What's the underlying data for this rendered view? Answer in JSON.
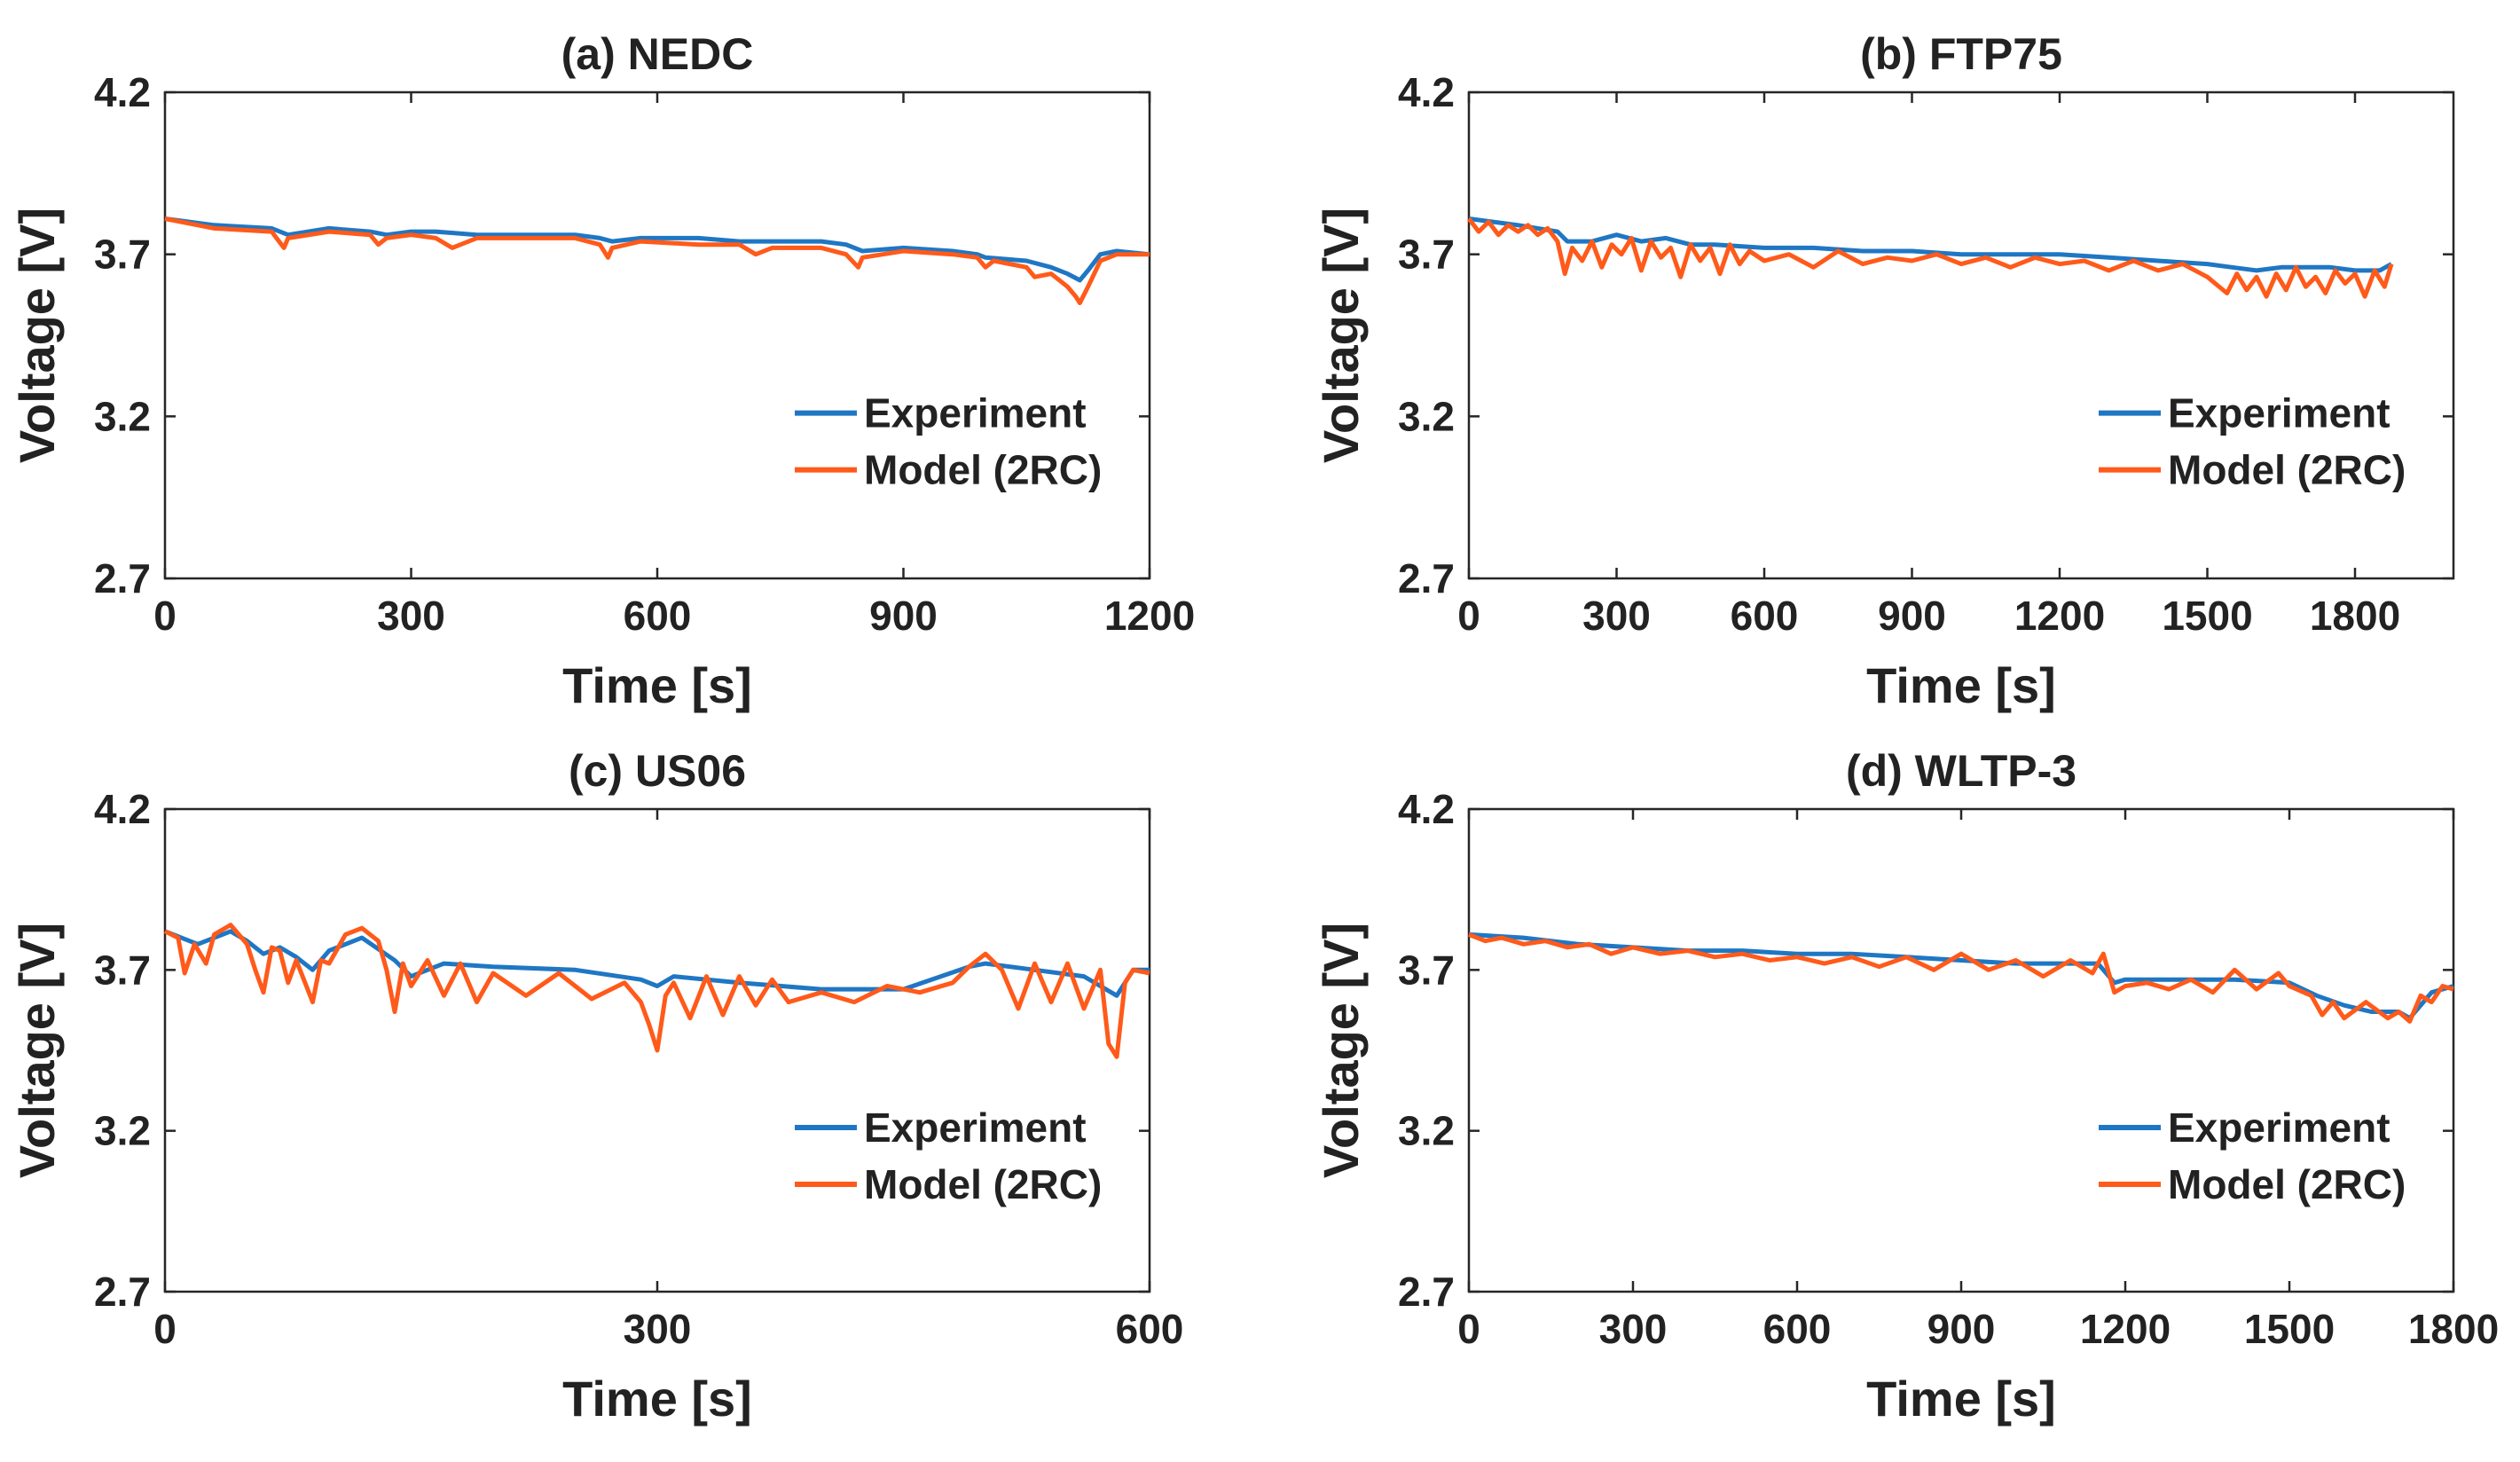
{
  "colors": {
    "experiment": "#1f77c4",
    "model": "#ff5a1a"
  },
  "chart_data": [
    {
      "type": "line",
      "title": "(a) NEDC",
      "xlabel": "Time [s]",
      "ylabel": "Voltage [V]",
      "xlim": [
        0,
        1200
      ],
      "ylim": [
        2.7,
        4.2
      ],
      "xticks": [
        "0",
        "300",
        "600",
        "900",
        "1200"
      ],
      "yticks": [
        "2.7",
        "3.2",
        "3.7",
        "4.2"
      ],
      "legend_position": "center-right",
      "series": [
        {
          "name": "Experiment",
          "x": [
            0,
            60,
            130,
            150,
            200,
            250,
            270,
            300,
            330,
            380,
            450,
            500,
            530,
            545,
            580,
            650,
            700,
            740,
            800,
            830,
            850,
            900,
            960,
            990,
            1000,
            1050,
            1080,
            1100,
            1115,
            1125,
            1140,
            1160,
            1200
          ],
          "y": [
            3.81,
            3.79,
            3.78,
            3.76,
            3.78,
            3.77,
            3.76,
            3.77,
            3.77,
            3.76,
            3.76,
            3.76,
            3.75,
            3.74,
            3.75,
            3.75,
            3.74,
            3.74,
            3.74,
            3.73,
            3.71,
            3.72,
            3.71,
            3.7,
            3.69,
            3.68,
            3.66,
            3.64,
            3.62,
            3.65,
            3.7,
            3.71,
            3.7
          ]
        },
        {
          "name": "Model (2RC)",
          "x": [
            0,
            60,
            130,
            145,
            150,
            200,
            250,
            260,
            270,
            300,
            330,
            350,
            380,
            450,
            500,
            530,
            540,
            545,
            580,
            650,
            700,
            720,
            740,
            800,
            830,
            845,
            850,
            900,
            960,
            990,
            1000,
            1010,
            1050,
            1060,
            1080,
            1100,
            1110,
            1115,
            1125,
            1140,
            1160,
            1200
          ],
          "y": [
            3.81,
            3.78,
            3.77,
            3.72,
            3.75,
            3.77,
            3.76,
            3.73,
            3.75,
            3.76,
            3.75,
            3.72,
            3.75,
            3.75,
            3.75,
            3.73,
            3.69,
            3.72,
            3.74,
            3.73,
            3.73,
            3.7,
            3.72,
            3.72,
            3.7,
            3.66,
            3.69,
            3.71,
            3.7,
            3.69,
            3.66,
            3.68,
            3.66,
            3.63,
            3.64,
            3.6,
            3.57,
            3.55,
            3.6,
            3.68,
            3.7,
            3.7
          ]
        }
      ]
    },
    {
      "type": "line",
      "title": "(b) FTP75",
      "xlabel": "Time [s]",
      "ylabel": "Voltage [V]",
      "xlim": [
        0,
        2000
      ],
      "ylim": [
        2.7,
        4.2
      ],
      "xticks": [
        "0",
        "300",
        "600",
        "900",
        "1200",
        "1500",
        "1800"
      ],
      "yticks": [
        "2.7",
        "3.2",
        "3.7",
        "4.2"
      ],
      "legend_position": "center-right",
      "series": [
        {
          "name": "Experiment",
          "x": [
            0,
            100,
            180,
            200,
            250,
            300,
            350,
            400,
            450,
            500,
            600,
            700,
            800,
            900,
            1000,
            1100,
            1200,
            1300,
            1400,
            1500,
            1550,
            1600,
            1650,
            1700,
            1750,
            1800,
            1850,
            1874
          ],
          "y": [
            3.81,
            3.79,
            3.77,
            3.74,
            3.74,
            3.76,
            3.74,
            3.75,
            3.73,
            3.73,
            3.72,
            3.72,
            3.71,
            3.71,
            3.7,
            3.7,
            3.7,
            3.69,
            3.68,
            3.67,
            3.66,
            3.65,
            3.66,
            3.66,
            3.66,
            3.65,
            3.65,
            3.67
          ]
        },
        {
          "name": "Model (2RC)",
          "x": [
            0,
            20,
            40,
            60,
            80,
            100,
            120,
            140,
            160,
            180,
            195,
            210,
            230,
            250,
            270,
            290,
            310,
            330,
            350,
            370,
            390,
            410,
            430,
            450,
            470,
            490,
            510,
            530,
            550,
            570,
            600,
            650,
            700,
            750,
            800,
            850,
            900,
            950,
            1000,
            1050,
            1100,
            1150,
            1200,
            1250,
            1300,
            1350,
            1400,
            1450,
            1500,
            1540,
            1560,
            1580,
            1600,
            1620,
            1640,
            1660,
            1680,
            1700,
            1720,
            1740,
            1760,
            1780,
            1800,
            1820,
            1840,
            1860,
            1874
          ],
          "y": [
            3.81,
            3.77,
            3.8,
            3.76,
            3.79,
            3.77,
            3.79,
            3.76,
            3.78,
            3.74,
            3.64,
            3.72,
            3.68,
            3.74,
            3.66,
            3.73,
            3.7,
            3.75,
            3.65,
            3.74,
            3.69,
            3.72,
            3.63,
            3.73,
            3.68,
            3.72,
            3.64,
            3.73,
            3.67,
            3.71,
            3.68,
            3.7,
            3.66,
            3.71,
            3.67,
            3.69,
            3.68,
            3.7,
            3.67,
            3.69,
            3.66,
            3.69,
            3.67,
            3.68,
            3.65,
            3.68,
            3.65,
            3.67,
            3.63,
            3.58,
            3.64,
            3.59,
            3.63,
            3.57,
            3.64,
            3.59,
            3.66,
            3.6,
            3.63,
            3.58,
            3.65,
            3.61,
            3.64,
            3.57,
            3.65,
            3.6,
            3.67
          ]
        }
      ]
    },
    {
      "type": "line",
      "title": "(c) US06",
      "xlabel": "Time [s]",
      "ylabel": "Voltage [V]",
      "xlim": [
        0,
        600
      ],
      "ylim": [
        2.7,
        4.2
      ],
      "xticks": [
        "0",
        "300",
        "600"
      ],
      "yticks": [
        "2.7",
        "3.2",
        "3.7",
        "4.2"
      ],
      "legend_position": "center-right",
      "series": [
        {
          "name": "Experiment",
          "x": [
            0,
            10,
            20,
            30,
            40,
            50,
            60,
            70,
            80,
            90,
            100,
            120,
            140,
            150,
            170,
            200,
            250,
            290,
            300,
            310,
            350,
            400,
            450,
            490,
            500,
            530,
            560,
            580,
            590,
            600
          ],
          "y": [
            3.82,
            3.8,
            3.78,
            3.8,
            3.82,
            3.79,
            3.75,
            3.77,
            3.74,
            3.7,
            3.76,
            3.8,
            3.73,
            3.68,
            3.72,
            3.71,
            3.7,
            3.67,
            3.65,
            3.68,
            3.66,
            3.64,
            3.64,
            3.71,
            3.72,
            3.7,
            3.68,
            3.62,
            3.7,
            3.7
          ]
        },
        {
          "name": "Model (2RC)",
          "x": [
            0,
            8,
            12,
            18,
            25,
            30,
            40,
            50,
            55,
            60,
            65,
            70,
            75,
            80,
            90,
            95,
            100,
            110,
            120,
            130,
            135,
            140,
            145,
            150,
            160,
            170,
            180,
            190,
            200,
            220,
            240,
            260,
            280,
            290,
            295,
            300,
            305,
            310,
            320,
            330,
            340,
            350,
            360,
            370,
            380,
            400,
            420,
            440,
            460,
            480,
            490,
            500,
            510,
            520,
            530,
            540,
            550,
            560,
            570,
            575,
            580,
            585,
            590,
            600
          ],
          "y": [
            3.82,
            3.8,
            3.69,
            3.78,
            3.72,
            3.81,
            3.84,
            3.78,
            3.7,
            3.63,
            3.77,
            3.76,
            3.66,
            3.73,
            3.6,
            3.73,
            3.72,
            3.81,
            3.83,
            3.79,
            3.7,
            3.57,
            3.72,
            3.65,
            3.73,
            3.62,
            3.72,
            3.6,
            3.69,
            3.62,
            3.69,
            3.61,
            3.66,
            3.6,
            3.53,
            3.45,
            3.62,
            3.66,
            3.55,
            3.68,
            3.56,
            3.68,
            3.59,
            3.67,
            3.6,
            3.63,
            3.6,
            3.65,
            3.63,
            3.66,
            3.71,
            3.75,
            3.7,
            3.58,
            3.72,
            3.6,
            3.72,
            3.58,
            3.7,
            3.47,
            3.43,
            3.66,
            3.7,
            3.69
          ]
        }
      ]
    },
    {
      "type": "line",
      "title": "(d) WLTP-3",
      "xlabel": "Time [s]",
      "ylabel": "Voltage [V]",
      "xlim": [
        0,
        1800
      ],
      "ylim": [
        2.7,
        4.2
      ],
      "xticks": [
        "0",
        "300",
        "600",
        "900",
        "1200",
        "1500",
        "1800"
      ],
      "yticks": [
        "2.7",
        "3.2",
        "3.7",
        "4.2"
      ],
      "legend_position": "center-right",
      "series": [
        {
          "name": "Experiment",
          "x": [
            0,
            100,
            200,
            300,
            400,
            500,
            600,
            700,
            800,
            900,
            1000,
            1100,
            1150,
            1180,
            1200,
            1300,
            1400,
            1500,
            1550,
            1600,
            1650,
            1700,
            1720,
            1760,
            1800
          ],
          "y": [
            3.81,
            3.8,
            3.78,
            3.77,
            3.76,
            3.76,
            3.75,
            3.75,
            3.74,
            3.73,
            3.72,
            3.72,
            3.72,
            3.66,
            3.67,
            3.67,
            3.67,
            3.66,
            3.62,
            3.59,
            3.57,
            3.57,
            3.55,
            3.63,
            3.65
          ]
        },
        {
          "name": "Model (2RC)",
          "x": [
            0,
            30,
            60,
            100,
            140,
            180,
            220,
            260,
            300,
            350,
            400,
            450,
            500,
            550,
            600,
            650,
            700,
            750,
            800,
            850,
            900,
            950,
            1000,
            1050,
            1100,
            1140,
            1160,
            1180,
            1200,
            1240,
            1280,
            1320,
            1360,
            1400,
            1440,
            1480,
            1500,
            1540,
            1560,
            1580,
            1600,
            1640,
            1680,
            1700,
            1720,
            1740,
            1760,
            1780,
            1800
          ],
          "y": [
            3.81,
            3.79,
            3.8,
            3.78,
            3.79,
            3.77,
            3.78,
            3.75,
            3.77,
            3.75,
            3.76,
            3.74,
            3.75,
            3.73,
            3.74,
            3.72,
            3.74,
            3.71,
            3.74,
            3.7,
            3.75,
            3.7,
            3.73,
            3.68,
            3.73,
            3.69,
            3.75,
            3.63,
            3.65,
            3.66,
            3.64,
            3.67,
            3.63,
            3.7,
            3.64,
            3.69,
            3.65,
            3.62,
            3.56,
            3.6,
            3.55,
            3.6,
            3.55,
            3.57,
            3.54,
            3.62,
            3.6,
            3.65,
            3.64
          ]
        }
      ]
    }
  ]
}
